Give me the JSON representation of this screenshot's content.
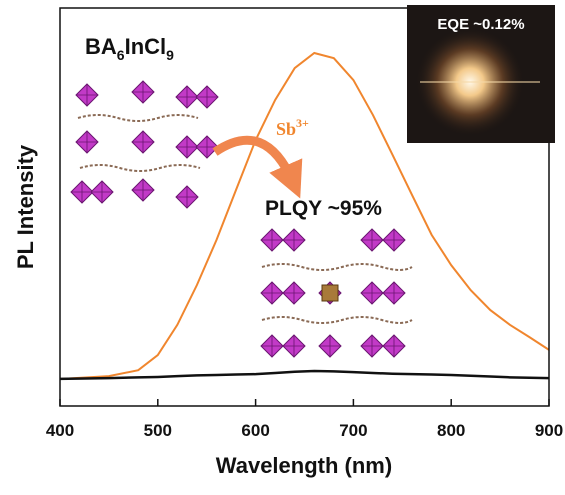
{
  "chart_data": {
    "type": "line",
    "x_label": "Wavelength (nm)",
    "y_label": "PL Intensity",
    "x": [
      400,
      450,
      480,
      500,
      520,
      540,
      560,
      580,
      600,
      620,
      640,
      660,
      680,
      700,
      720,
      740,
      760,
      780,
      800,
      820,
      840,
      860,
      880,
      900
    ],
    "series": [
      {
        "color": "#f0862e",
        "values": [
          0.068,
          0.075,
          0.09,
          0.128,
          0.204,
          0.304,
          0.417,
          0.543,
          0.668,
          0.769,
          0.849,
          0.887,
          0.874,
          0.819,
          0.731,
          0.631,
          0.53,
          0.43,
          0.354,
          0.291,
          0.241,
          0.204,
          0.173,
          0.141
        ]
      },
      {
        "color": "#111111",
        "values": [
          0.068,
          0.07,
          0.072,
          0.073,
          0.075,
          0.077,
          0.078,
          0.079,
          0.08,
          0.083,
          0.086,
          0.088,
          0.087,
          0.085,
          0.083,
          0.081,
          0.08,
          0.079,
          0.078,
          0.076,
          0.074,
          0.072,
          0.071,
          0.07
        ]
      }
    ],
    "xlim": [
      400,
      900
    ],
    "xticks": [
      400,
      500,
      600,
      700,
      800,
      900
    ],
    "ylim": [
      0,
      1
    ],
    "yticks": [],
    "annotations": {
      "host": [
        "BA",
        "6",
        "InCl",
        "9"
      ],
      "dopant": [
        "Sb",
        "3+"
      ],
      "plqy": "PLQY ~95%",
      "eqe": "EQE ~0.12%"
    }
  }
}
